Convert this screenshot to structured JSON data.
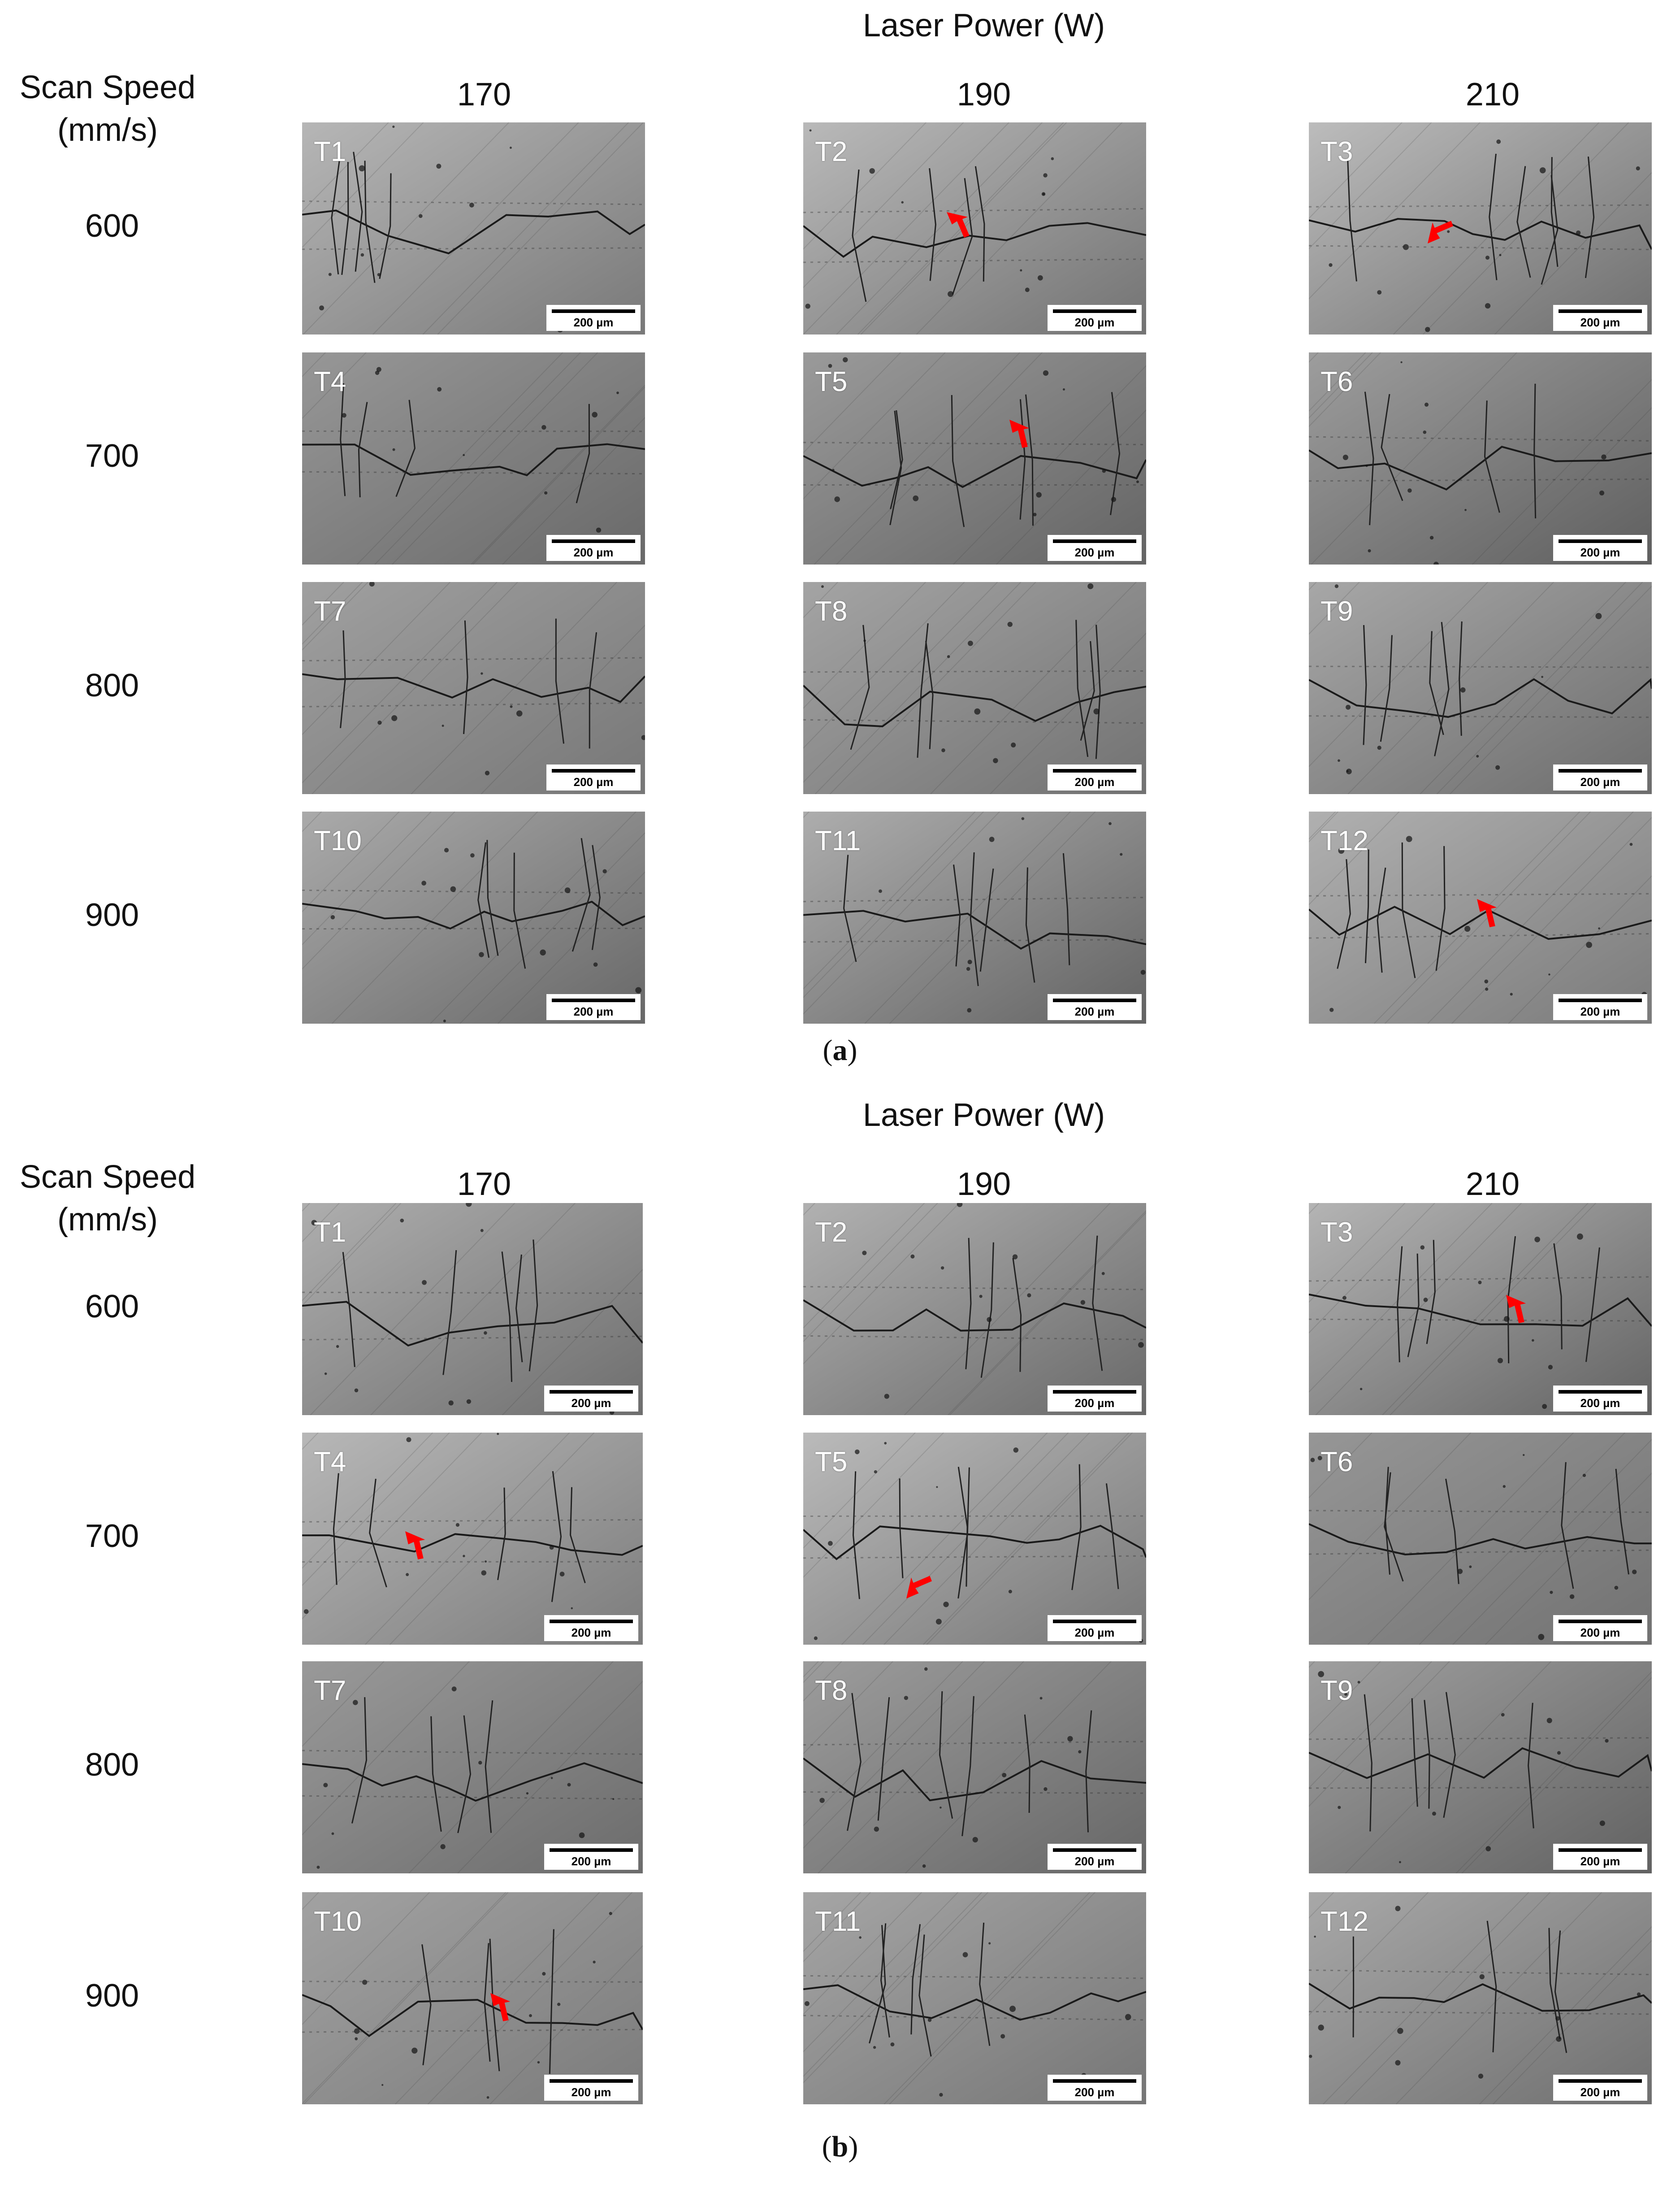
{
  "figure": {
    "scalebar_text": "200 µm",
    "arrow_color": "#ff0000",
    "panels": [
      {
        "id": "a",
        "caption_open": "(",
        "caption_letter": "a",
        "caption_close": ")",
        "header_title": "Laser Power (W)",
        "scan_speed_label": "Scan Speed",
        "scan_speed_unit": "(mm/s)",
        "laser_powers": [
          "170",
          "190",
          "210"
        ],
        "scan_speeds": [
          "600",
          "700",
          "800",
          "900"
        ],
        "samples": [
          "T1",
          "T2",
          "T3",
          "T4",
          "T5",
          "T6",
          "T7",
          "T8",
          "T9",
          "T10",
          "T11",
          "T12"
        ],
        "marked_cracks": [
          "T2",
          "T3",
          "T5",
          "T12"
        ]
      },
      {
        "id": "b",
        "caption_open": "(",
        "caption_letter": "b",
        "caption_close": ")",
        "header_title": "Laser Power (W)",
        "scan_speed_label": "Scan Speed",
        "scan_speed_unit": "(mm/s)",
        "laser_powers": [
          "170",
          "190",
          "210"
        ],
        "scan_speeds": [
          "600",
          "700",
          "800",
          "900"
        ],
        "samples": [
          "T1",
          "T2",
          "T3",
          "T4",
          "T5",
          "T6",
          "T7",
          "T8",
          "T9",
          "T10",
          "T11",
          "T12"
        ],
        "marked_cracks": [
          "T3",
          "T4",
          "T5",
          "T10"
        ]
      }
    ]
  }
}
